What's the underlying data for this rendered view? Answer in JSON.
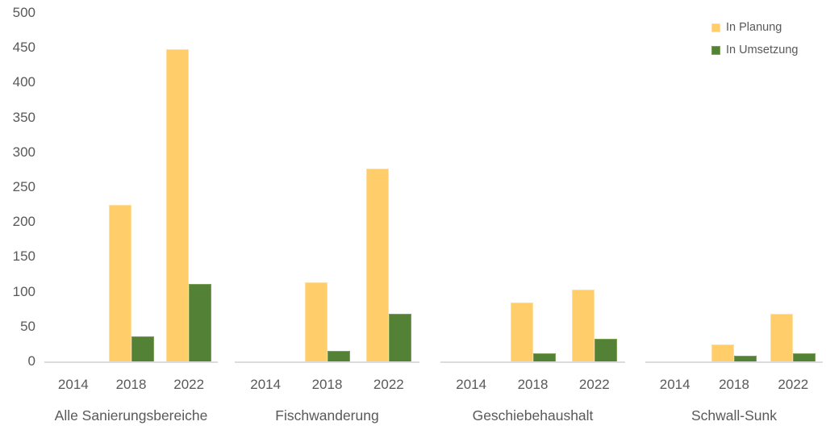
{
  "legend": {
    "position": "top-right",
    "items": [
      {
        "label": "In Planung",
        "color": "#FFCD69",
        "border_color": "#FFDFA0"
      },
      {
        "label": "In Umsetzung",
        "color": "#538135",
        "border_color": "#79A054"
      }
    ]
  },
  "chart_data": {
    "type": "bar",
    "title": "",
    "xlabel": "",
    "ylabel": "",
    "grid": false,
    "legend_position": "top-right",
    "y_axis": {
      "min": 0,
      "max": 500,
      "step": 50,
      "ticks": [
        0,
        50,
        100,
        150,
        200,
        250,
        300,
        350,
        400,
        450,
        500
      ]
    },
    "groups": [
      "Alle Sanierungsbereiche",
      "Fischwanderung",
      "Geschiebehaushalt",
      "Schwall-Sunk"
    ],
    "years": [
      "2014",
      "2018",
      "2022"
    ],
    "series": [
      {
        "name": "In Planung",
        "color": "#FFCD69",
        "border_color": "#FFDFA0",
        "values": [
          [
            0,
            224,
            448
          ],
          [
            0,
            113,
            277
          ],
          [
            0,
            85,
            103
          ],
          [
            0,
            24,
            68
          ]
        ]
      },
      {
        "name": "In Umsetzung",
        "color": "#538135",
        "border_color": "#79A054",
        "values": [
          [
            0,
            36,
            111
          ],
          [
            0,
            15,
            68
          ],
          [
            0,
            12,
            32
          ],
          [
            0,
            8,
            12
          ]
        ]
      }
    ]
  }
}
